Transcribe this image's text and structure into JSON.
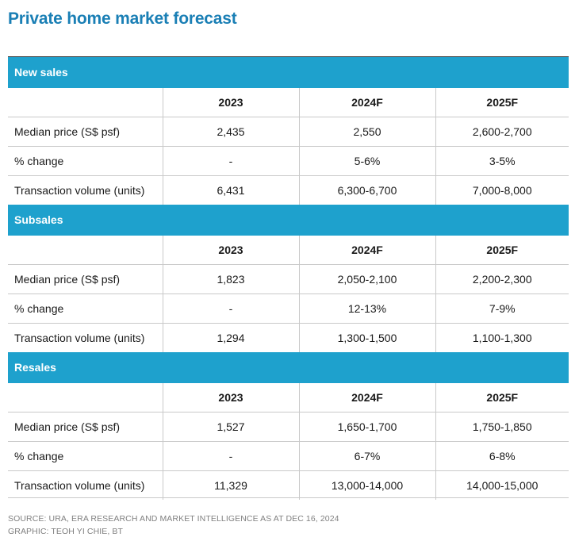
{
  "title": "Private home market forecast",
  "columns": [
    "2023",
    "2024F",
    "2025F"
  ],
  "sections": [
    {
      "name": "New sales",
      "rows": [
        {
          "label": "Median price (S$ psf)",
          "values": [
            "2,435",
            "2,550",
            "2,600-2,700"
          ]
        },
        {
          "label": "% change",
          "values": [
            "-",
            "5-6%",
            "3-5%"
          ]
        },
        {
          "label": "Transaction volume (units)",
          "values": [
            "6,431",
            "6,300-6,700",
            "7,000-8,000"
          ]
        }
      ]
    },
    {
      "name": "Subsales",
      "rows": [
        {
          "label": "Median price (S$ psf)",
          "values": [
            "1,823",
            "2,050-2,100",
            "2,200-2,300"
          ]
        },
        {
          "label": "% change",
          "values": [
            "-",
            "12-13%",
            "7-9%"
          ]
        },
        {
          "label": "Transaction volume (units)",
          "values": [
            "1,294",
            "1,300-1,500",
            "1,100-1,300"
          ]
        }
      ]
    },
    {
      "name": "Resales",
      "rows": [
        {
          "label": "Median price (S$ psf)",
          "values": [
            "1,527",
            "1,650-1,700",
            "1,750-1,850"
          ]
        },
        {
          "label": "% change",
          "values": [
            "-",
            "6-7%",
            "6-8%"
          ]
        },
        {
          "label": "Transaction volume (units)",
          "values": [
            "11,329",
            "13,000-14,000",
            "14,000-15,000"
          ]
        }
      ]
    }
  ],
  "footer": {
    "source": "SOURCE: URA, ERA RESEARCH AND MARKET INTELLIGENCE AS AT DEC 16, 2024",
    "graphic": "GRAPHIC: TEOH YI CHIE, BT"
  },
  "colors": {
    "title": "#1a7fb5",
    "section_header": "#1ea1cd",
    "grid": "#c9c9c9"
  }
}
